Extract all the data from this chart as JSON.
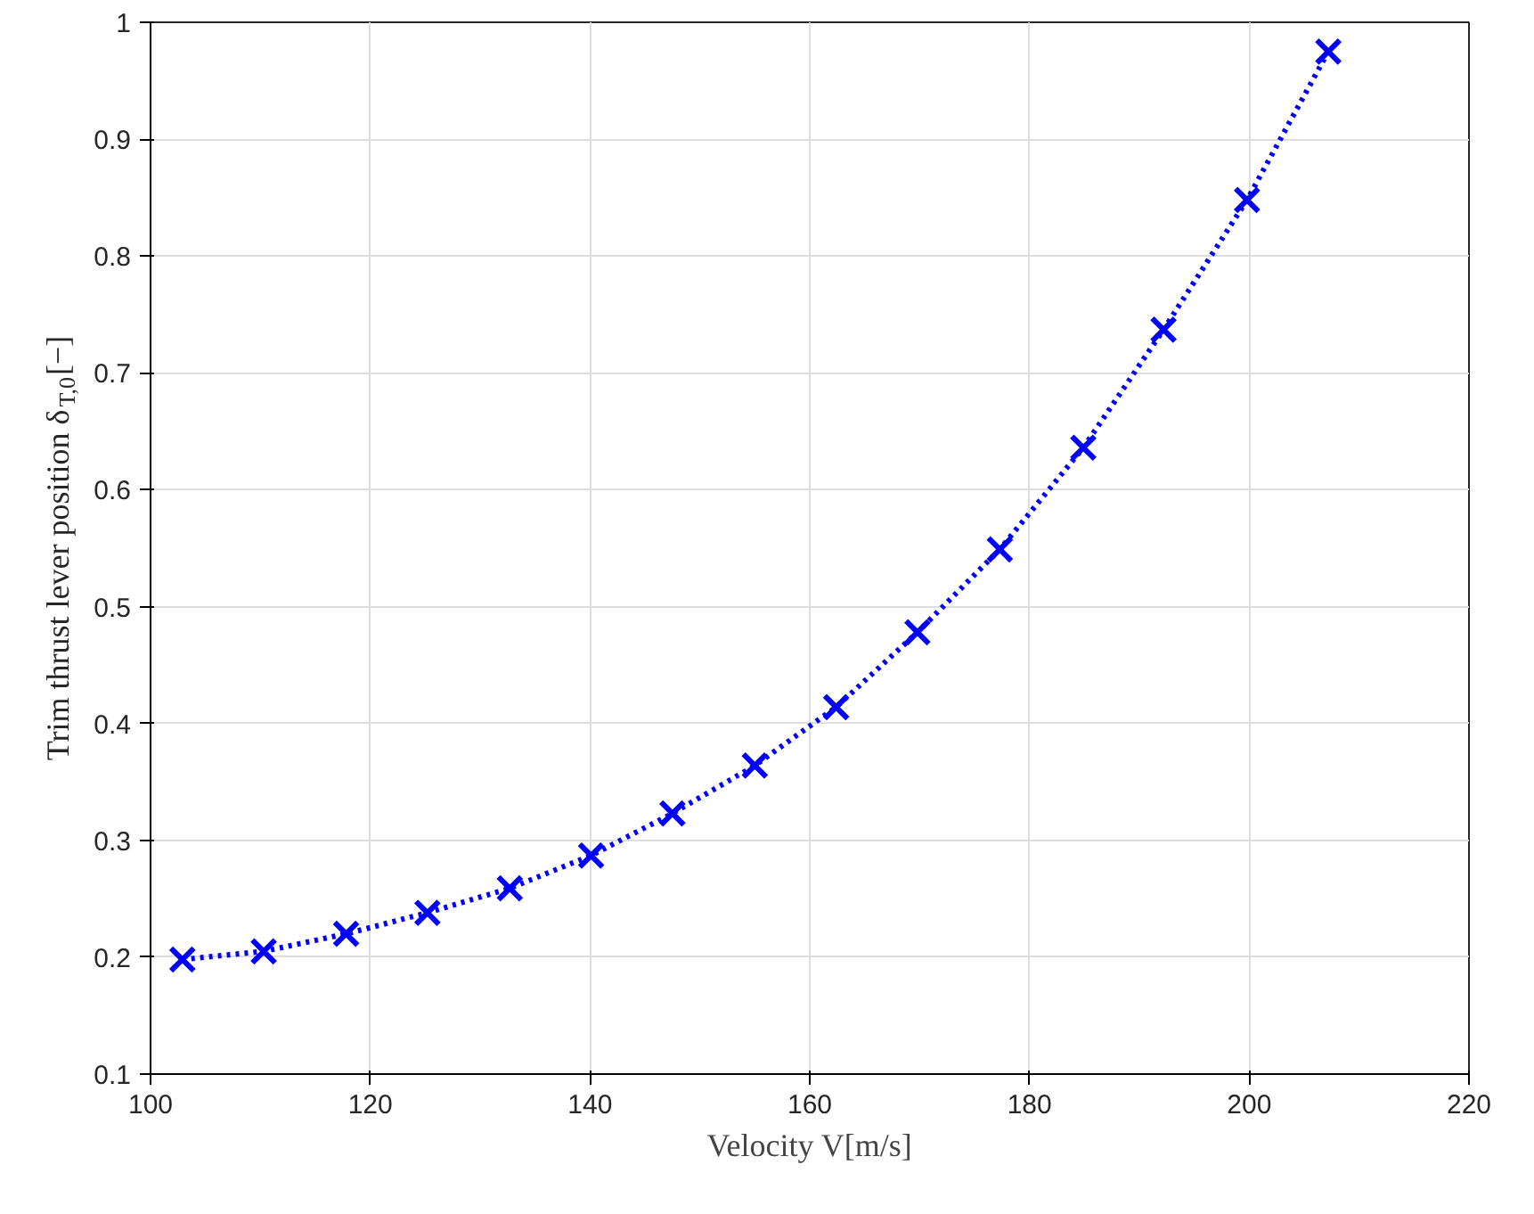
{
  "chart_data": {
    "type": "line",
    "xlabel": "Velocity V[m/s]",
    "ylabel": "Trim thrust lever position δ$_{T,0}$[−]",
    "x": [
      102.9,
      110.3,
      117.8,
      125.2,
      132.7,
      140.1,
      147.5,
      155.0,
      162.4,
      169.8,
      177.3,
      184.9,
      192.2,
      199.8,
      207.2
    ],
    "series": [
      {
        "color": "#0000ff",
        "values": [
          0.198,
          0.205,
          0.22,
          0.238,
          0.259,
          0.287,
          0.323,
          0.364,
          0.414,
          0.478,
          0.549,
          0.636,
          0.737,
          0.848,
          0.975
        ]
      }
    ],
    "xlim": [
      100,
      220
    ],
    "xticks": [
      100,
      120,
      140,
      160,
      180,
      200,
      220
    ],
    "ylim": [
      0.1,
      1
    ],
    "yticks": [
      0.1,
      0.2,
      0.3,
      0.4,
      0.5,
      0.6,
      0.7,
      0.8,
      0.9,
      1
    ],
    "grid": true,
    "marker": "cross",
    "line_style": "dotted"
  }
}
